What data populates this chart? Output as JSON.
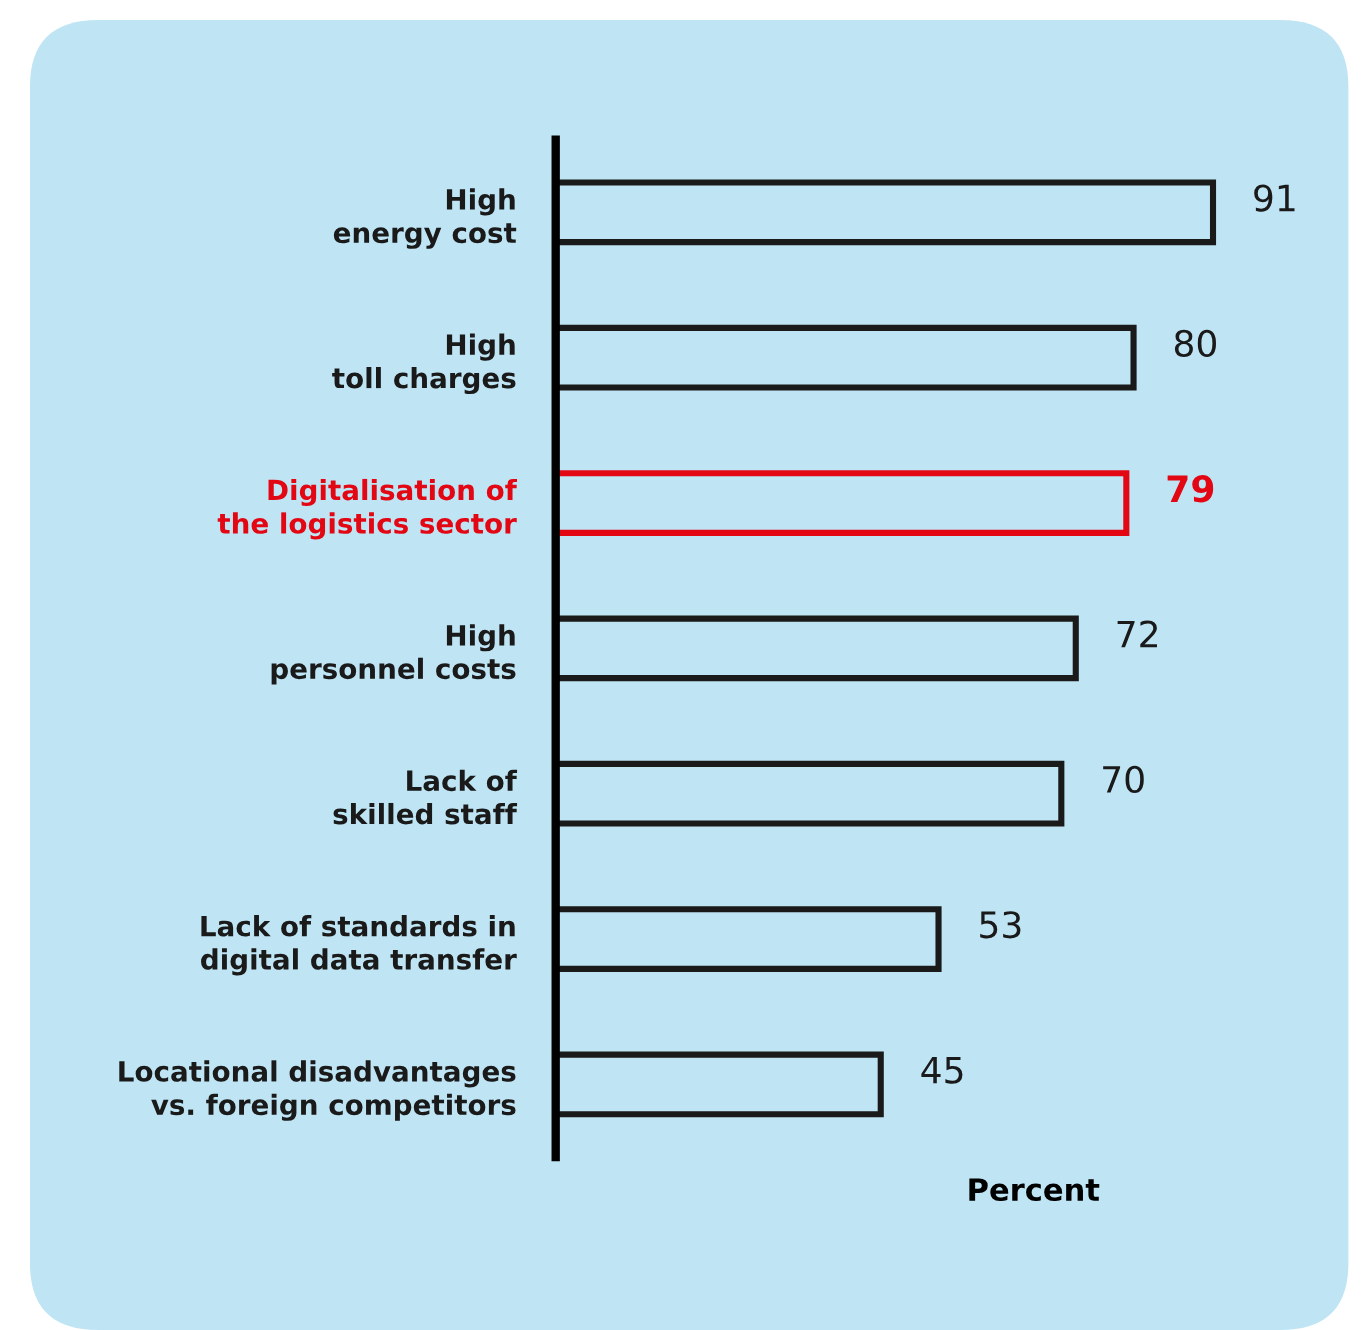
{
  "chart_data": {
    "type": "bar",
    "orientation": "horizontal",
    "xlabel": "Percent",
    "categories": [
      "High\nenergy cost",
      "High\ntoll charges",
      "Digitalisation of\nthe logistics sector",
      "High\npersonnel costs",
      "Lack of\nskilled staff",
      "Lack of standards in\ndigital data transfer",
      "Locational disadvantages\nvs. foreign competitors"
    ],
    "values": [
      91,
      80,
      79,
      72,
      70,
      53,
      45
    ],
    "colors": [
      "#1a1a1a",
      "#1a1a1a",
      "#e30613",
      "#1a1a1a",
      "#1a1a1a",
      "#1a1a1a",
      "#1a1a1a"
    ],
    "data_labels": true,
    "grid": false,
    "legend": false
  }
}
